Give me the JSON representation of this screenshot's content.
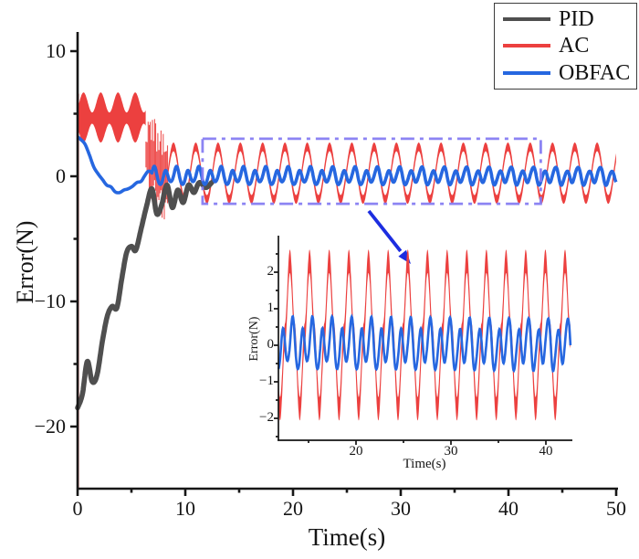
{
  "legend": {
    "entries": [
      {
        "label": "PID",
        "color": "#4f4f4f"
      },
      {
        "label": "AC",
        "color": "#ec403f"
      },
      {
        "label": "OBFAC",
        "color": "#2667e0"
      }
    ]
  },
  "chart_data": {
    "type": "line",
    "title": "",
    "xlabel": "Time(s)",
    "ylabel": "Error(N)",
    "xlim": [
      0,
      50
    ],
    "ylim": [
      -25,
      11.5
    ],
    "xticks": [
      0,
      10,
      20,
      30,
      40,
      50
    ],
    "xticks_minor": [
      5,
      15,
      25,
      35,
      45
    ],
    "xtick_labels": [
      "0",
      "10",
      "20",
      "30",
      "40",
      "50"
    ],
    "yticks": [
      10,
      0,
      -10,
      -20
    ],
    "yticks_minor": [
      5,
      -5,
      -15
    ],
    "ytick_labels": [
      "10",
      "0",
      "−10",
      "−20"
    ],
    "grid": false,
    "legend_position": "top-right outside plot",
    "series": [
      {
        "name": "PID",
        "color": "#4f4f4f",
        "style": "thick wiggly line, settles to ~0 after t≈10 s",
        "points": [
          [
            0,
            -18.5
          ],
          [
            0.45,
            -17.4
          ],
          [
            0.9,
            -14.8
          ],
          [
            1.35,
            -16.4
          ],
          [
            1.8,
            -15.9
          ],
          [
            2.3,
            -13.2
          ],
          [
            2.75,
            -11.2
          ],
          [
            3.2,
            -10.4
          ],
          [
            3.65,
            -10.5
          ],
          [
            4.1,
            -8.2
          ],
          [
            4.55,
            -6.1
          ],
          [
            5.0,
            -5.6
          ],
          [
            5.4,
            -5.9
          ],
          [
            5.9,
            -4.2
          ],
          [
            6.4,
            -2.4
          ],
          [
            6.9,
            -1.0
          ],
          [
            7.35,
            -3.0
          ],
          [
            7.8,
            -2.3
          ],
          [
            8.3,
            -0.7
          ],
          [
            8.8,
            -2.5
          ],
          [
            9.3,
            -1.1
          ],
          [
            9.8,
            -2.1
          ],
          [
            10.3,
            -0.7
          ],
          [
            10.8,
            -1.3
          ],
          [
            11.3,
            -0.5
          ],
          [
            11.9,
            -0.9
          ],
          [
            12.45,
            -0.5
          ]
        ]
      },
      {
        "name": "AC",
        "color": "#ec403f",
        "style": "high-frequency oscillation rendered as a solid band",
        "transient_spike": {
          "t": 0.06,
          "v_top": 6.6,
          "v_bottom": -24.9
        },
        "initial_band": {
          "t_range": [
            0,
            6.35
          ],
          "top_mean": 5.9,
          "top_amp": 0.8,
          "bottom_mean": 3.45,
          "bottom_amp": 0.75,
          "period": 1.6,
          "crest_t": 0.55
        },
        "noise_band": {
          "t_range": [
            6.35,
            8.35
          ],
          "top_start": 4.0,
          "top_end": 2.4,
          "bottom_start": -0.5,
          "bottom_end": -3.0,
          "jitter": 1.25
        },
        "steady_band": {
          "t_range": [
            8.35,
            50
          ],
          "mean": 0.25,
          "amplitude": 2.1,
          "period": 2.07,
          "peak_t": 8.9,
          "half_width": 0.35,
          "peak_value": 2.7,
          "trough_value": -2.2
        }
      },
      {
        "name": "OBFAC",
        "color": "#2667e0",
        "style": "smooth line, small bounded oscillation after t≈7 s",
        "initial_points": [
          [
            0,
            3.15
          ],
          [
            0.35,
            2.9
          ],
          [
            0.7,
            2.55
          ],
          [
            1.1,
            1.7
          ],
          [
            1.5,
            0.75
          ],
          [
            1.9,
            0.2
          ],
          [
            2.3,
            -0.25
          ],
          [
            2.7,
            -0.7
          ],
          [
            3.1,
            -0.85
          ],
          [
            3.5,
            -1.25
          ],
          [
            3.9,
            -1.3
          ],
          [
            4.3,
            -1.1
          ],
          [
            4.7,
            -1.0
          ],
          [
            5.1,
            -0.8
          ],
          [
            5.5,
            -0.5
          ],
          [
            5.9,
            -0.4
          ],
          [
            6.2,
            0.0
          ],
          [
            6.55,
            0.4
          ],
          [
            6.9,
            0.31
          ]
        ],
        "steady": {
          "t_range": [
            6.9,
            50
          ],
          "mean": 0,
          "components": [
            {
              "amp": 0.58,
              "period": 1.035,
              "t_peak": 9.2
            },
            {
              "amp": 0.2,
              "period": 2.07,
              "t_peak": 9.0
            },
            {
              "amp": 0.05,
              "period": 0.52,
              "t_peak": 9.2
            }
          ],
          "peak_value": 0.85,
          "trough_value": -0.9
        }
      }
    ],
    "zoom_region": {
      "t_range": [
        11.6,
        43.0
      ],
      "v_range": [
        -2.2,
        3.0
      ],
      "box_color": "#867df2",
      "box_style": "dash-dot"
    },
    "arrow": {
      "color": "#1c2de0",
      "points_to": "inset"
    },
    "inset": {
      "xlabel": "Time(s)",
      "ylabel": "Error(N)",
      "xlim": [
        11.83,
        42.6
      ],
      "ylim": [
        -2.6,
        3.0
      ],
      "xticks": [
        20,
        30,
        40
      ],
      "xticks_minor": [
        15,
        25,
        35
      ],
      "xtick_labels": [
        "20",
        "30",
        "40"
      ],
      "yticks": [
        2,
        1,
        0,
        -1,
        -2
      ],
      "yticks_minor": [
        2.5,
        1.5,
        0.5,
        -0.5,
        -1.5,
        -2.5
      ],
      "ytick_labels": [
        "2",
        "1",
        "0",
        "−1",
        "−2"
      ],
      "ac_peak": 2.62,
      "ac_trough": -2.06,
      "spike_sharpness": 1.8,
      "ac_half_width": 0.32,
      "obfac_peak": 0.85,
      "obfac_trough": -0.9
    }
  }
}
